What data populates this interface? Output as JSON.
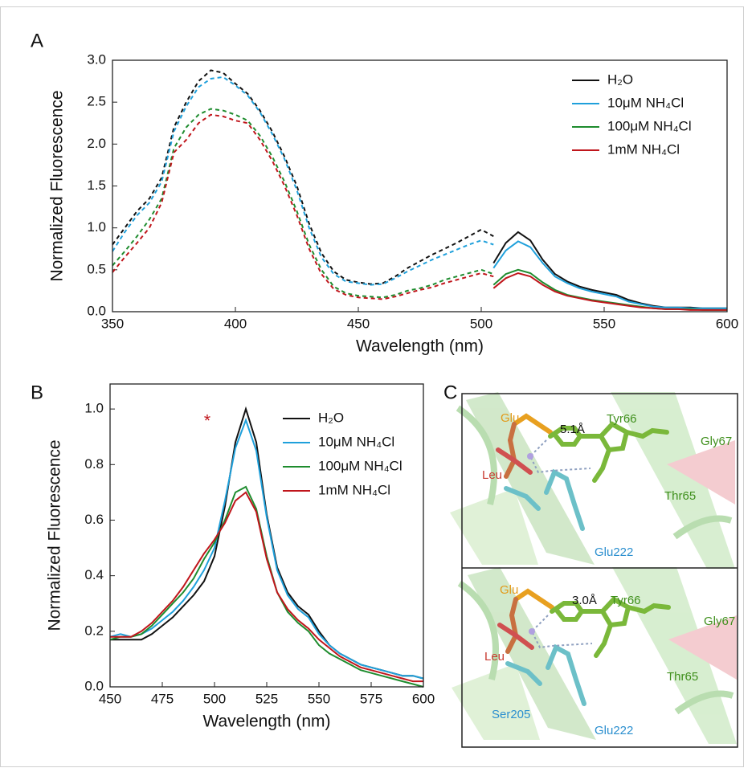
{
  "chart_data": [
    {
      "type": "line",
      "label": "A",
      "xlabel": "Wavelength (nm)",
      "ylabel": "Normalized Fluorescence",
      "xlim": [
        350,
        600
      ],
      "ylim": [
        0,
        3
      ],
      "xticks": [
        350,
        400,
        450,
        500,
        550,
        600
      ],
      "yticks": [
        {
          "value": 0,
          "label": "0.0"
        },
        0.5,
        {
          "value": 1,
          "label": "1.0"
        },
        1.5,
        {
          "value": 2,
          "label": "2.0"
        },
        2.5,
        {
          "value": 3,
          "label": "3.0"
        }
      ],
      "x_excitation": [
        350,
        355,
        360,
        365,
        370,
        375,
        380,
        385,
        390,
        395,
        400,
        405,
        410,
        415,
        420,
        425,
        430,
        435,
        440,
        445,
        450,
        455,
        460,
        465,
        470,
        475,
        480,
        485,
        490,
        495,
        500,
        505
      ],
      "x_emission": [
        505,
        510,
        515,
        520,
        525,
        530,
        535,
        540,
        545,
        550,
        555,
        560,
        565,
        570,
        575,
        580,
        585,
        590,
        595,
        600
      ],
      "series": [
        {
          "name": "H₂O",
          "color": "#111111",
          "excitation": [
            0.8,
            1.0,
            1.2,
            1.35,
            1.6,
            2.2,
            2.5,
            2.75,
            2.88,
            2.85,
            2.72,
            2.6,
            2.4,
            2.15,
            1.85,
            1.5,
            1.05,
            0.7,
            0.48,
            0.38,
            0.35,
            0.33,
            0.34,
            0.42,
            0.52,
            0.6,
            0.68,
            0.75,
            0.82,
            0.9,
            0.98,
            0.9
          ],
          "emission": [
            0.58,
            0.82,
            0.95,
            0.85,
            0.62,
            0.45,
            0.36,
            0.3,
            0.26,
            0.23,
            0.2,
            0.14,
            0.1,
            0.07,
            0.05,
            0.05,
            0.05,
            0.04,
            0.04,
            0.04
          ]
        },
        {
          "name": "10μM NH₄Cl",
          "color": "#1fa0db",
          "excitation": [
            0.72,
            0.95,
            1.15,
            1.3,
            1.55,
            2.15,
            2.45,
            2.68,
            2.78,
            2.8,
            2.7,
            2.58,
            2.38,
            2.12,
            1.82,
            1.45,
            1.0,
            0.65,
            0.45,
            0.36,
            0.34,
            0.32,
            0.33,
            0.4,
            0.48,
            0.55,
            0.62,
            0.68,
            0.74,
            0.8,
            0.85,
            0.8
          ],
          "emission": [
            0.52,
            0.73,
            0.84,
            0.77,
            0.58,
            0.42,
            0.34,
            0.28,
            0.24,
            0.21,
            0.18,
            0.12,
            0.09,
            0.06,
            0.05,
            0.05,
            0.04,
            0.04,
            0.04,
            0.04
          ]
        },
        {
          "name": "100μM NH₄Cl",
          "color": "#1e8c2e",
          "excitation": [
            0.55,
            0.72,
            0.9,
            1.1,
            1.35,
            1.95,
            2.2,
            2.35,
            2.42,
            2.4,
            2.35,
            2.28,
            2.1,
            1.85,
            1.55,
            1.2,
            0.8,
            0.5,
            0.3,
            0.22,
            0.19,
            0.18,
            0.17,
            0.2,
            0.25,
            0.28,
            0.32,
            0.38,
            0.42,
            0.46,
            0.5,
            0.45
          ],
          "emission": [
            0.32,
            0.45,
            0.5,
            0.46,
            0.35,
            0.26,
            0.2,
            0.17,
            0.14,
            0.12,
            0.1,
            0.08,
            0.06,
            0.04,
            0.03,
            0.03,
            0.03,
            0.02,
            0.02,
            0.02
          ]
        },
        {
          "name": "1mM NH₄Cl",
          "color": "#c0161c",
          "excitation": [
            0.47,
            0.65,
            0.82,
            1.0,
            1.3,
            1.9,
            2.05,
            2.25,
            2.35,
            2.33,
            2.28,
            2.25,
            2.05,
            1.8,
            1.5,
            1.15,
            0.75,
            0.45,
            0.27,
            0.2,
            0.17,
            0.16,
            0.15,
            0.18,
            0.22,
            0.26,
            0.29,
            0.34,
            0.38,
            0.42,
            0.46,
            0.42
          ],
          "emission": [
            0.28,
            0.4,
            0.46,
            0.42,
            0.32,
            0.24,
            0.19,
            0.16,
            0.13,
            0.11,
            0.09,
            0.07,
            0.05,
            0.04,
            0.03,
            0.03,
            0.02,
            0.02,
            0.02,
            0.02
          ]
        }
      ]
    },
    {
      "type": "line",
      "label": "B",
      "xlabel": "Wavelength (nm)",
      "ylabel": "Normalized Fluorescence",
      "xlim": [
        450,
        600
      ],
      "ylim": [
        0,
        1.09
      ],
      "xticks": [
        450,
        475,
        500,
        525,
        550,
        575,
        600
      ],
      "yticks": [
        {
          "value": 0,
          "label": "0.0"
        },
        0.2,
        0.4,
        0.6,
        0.8,
        {
          "value": 1,
          "label": "1.0"
        }
      ],
      "annotation": "*",
      "annotation_color": "#c0161c",
      "x": [
        450,
        455,
        460,
        465,
        470,
        475,
        480,
        485,
        490,
        495,
        500,
        505,
        510,
        515,
        520,
        525,
        530,
        535,
        540,
        545,
        550,
        555,
        560,
        565,
        570,
        575,
        580,
        585,
        590,
        595,
        600
      ],
      "series": [
        {
          "name": "H₂O",
          "color": "#111111",
          "values": [
            0.17,
            0.17,
            0.17,
            0.17,
            0.19,
            0.22,
            0.25,
            0.29,
            0.33,
            0.38,
            0.47,
            0.65,
            0.88,
            1.0,
            0.88,
            0.62,
            0.43,
            0.34,
            0.29,
            0.26,
            0.2,
            0.15,
            0.12,
            0.1,
            0.08,
            0.07,
            0.06,
            0.05,
            0.04,
            0.04,
            0.03
          ]
        },
        {
          "name": "10μM NH₄Cl",
          "color": "#1fa0db",
          "values": [
            0.18,
            0.19,
            0.18,
            0.19,
            0.21,
            0.24,
            0.27,
            0.31,
            0.36,
            0.42,
            0.5,
            0.67,
            0.86,
            0.96,
            0.85,
            0.61,
            0.42,
            0.33,
            0.28,
            0.25,
            0.19,
            0.15,
            0.12,
            0.1,
            0.08,
            0.07,
            0.06,
            0.05,
            0.04,
            0.04,
            0.03
          ]
        },
        {
          "name": "100μM NH₄Cl",
          "color": "#1e8c2e",
          "values": [
            0.17,
            0.18,
            0.18,
            0.19,
            0.22,
            0.26,
            0.3,
            0.34,
            0.39,
            0.46,
            0.52,
            0.6,
            0.7,
            0.72,
            0.64,
            0.47,
            0.34,
            0.27,
            0.23,
            0.2,
            0.15,
            0.12,
            0.1,
            0.08,
            0.06,
            0.05,
            0.04,
            0.03,
            0.02,
            0.01,
            0.0
          ]
        },
        {
          "name": "1mM NH₄Cl",
          "color": "#c0161c",
          "values": [
            0.18,
            0.18,
            0.18,
            0.2,
            0.23,
            0.27,
            0.31,
            0.36,
            0.42,
            0.48,
            0.53,
            0.59,
            0.67,
            0.7,
            0.63,
            0.46,
            0.34,
            0.28,
            0.24,
            0.21,
            0.17,
            0.14,
            0.11,
            0.09,
            0.07,
            0.06,
            0.05,
            0.04,
            0.03,
            0.02,
            0.02
          ]
        }
      ]
    }
  ],
  "panel_c": {
    "label": "C",
    "structures": [
      {
        "labels": [
          "Glu",
          "5.1Å",
          "Tyr66",
          "Gly67",
          "Leu",
          "Thr65",
          "Glu222"
        ]
      },
      {
        "labels": [
          "Glu",
          "3.0Å",
          "Tyr66",
          "Gly67",
          "Leu",
          "Thr65",
          "Ser205",
          "Glu222"
        ]
      }
    ]
  }
}
